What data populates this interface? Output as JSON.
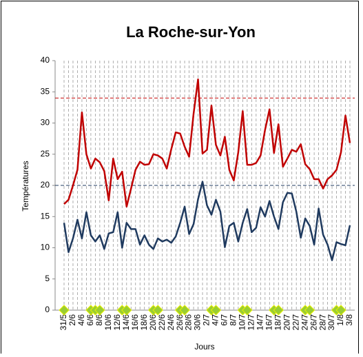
{
  "chart_data": {
    "type": "line",
    "title": "La Roche-sur-Yon",
    "x_label": "Jours",
    "y_label": "Températures",
    "categories": [
      "31/5",
      null,
      "2/6",
      null,
      "4/6",
      null,
      "6/6",
      null,
      "8/6",
      null,
      "10/6",
      null,
      "12/6",
      null,
      "14/6",
      null,
      "16/6",
      null,
      "18/6",
      null,
      "20/6",
      null,
      "22/6",
      null,
      "24/6",
      null,
      "26/6",
      null,
      "28/6",
      null,
      "30/6",
      null,
      "2/7",
      null,
      "4/7",
      null,
      "6/7",
      null,
      "8/7",
      null,
      "10/7",
      null,
      "12/7",
      null,
      "14/7",
      null,
      "16/7",
      null,
      "18/7",
      null,
      "20/7",
      null,
      "22/7",
      null,
      "24/7",
      null,
      "26/7",
      null,
      "28/7",
      null,
      "30/7",
      null,
      "1/8",
      null,
      "3/8"
    ],
    "series": [
      {
        "color": "#c00000",
        "style": "line",
        "values": [
          17,
          17.7,
          20,
          22.5,
          31.7,
          25,
          22.7,
          24.3,
          23.7,
          22.3,
          17.6,
          24.3,
          21,
          22.2,
          16.6,
          19.5,
          22.5,
          23.8,
          23.3,
          23.4,
          25,
          24.8,
          24.3,
          22.7,
          25.8,
          28.5,
          28.3,
          26.2,
          24.6,
          31.5,
          37,
          25.1,
          25.7,
          32.8,
          26.5,
          24.8,
          27.8,
          22.5,
          20.8,
          25.3,
          31.9,
          23.3,
          23.3,
          23.6,
          24.8,
          28.9,
          32.2,
          25.2,
          29.8,
          23,
          24.3,
          25.7,
          25.4,
          26.6,
          23.4,
          22.6,
          21,
          21,
          19.5,
          21,
          21.6,
          22.5,
          25.3,
          31.2,
          26.8
        ]
      },
      {
        "color": "#1f3a5f",
        "style": "line",
        "values": [
          14,
          9.3,
          11.5,
          14.5,
          11.5,
          15.7,
          12,
          11,
          12,
          9.8,
          12.3,
          12.5,
          15.7,
          10,
          14,
          13,
          13,
          10.5,
          12,
          10.5,
          9.8,
          11.5,
          11,
          11.3,
          10.8,
          11.8,
          14,
          16.6,
          12.2,
          13.8,
          17.8,
          20.6,
          16.8,
          15.3,
          17.7,
          15.8,
          10.1,
          13.5,
          14,
          11,
          14,
          16.2,
          12.5,
          13.2,
          16.5,
          15,
          17.5,
          15,
          13,
          17.3,
          18.8,
          18.7,
          15.8,
          11.6,
          14.7,
          13.5,
          10.5,
          16.3,
          12.1,
          10.5,
          8,
          10.9,
          10.6,
          10.4,
          13.6
        ]
      },
      {
        "color": "#9acd32",
        "style": "diamond",
        "values": [
          0,
          null,
          null,
          null,
          null,
          null,
          0,
          0,
          0,
          null,
          null,
          null,
          null,
          0,
          0,
          null,
          null,
          null,
          null,
          null,
          0,
          0,
          null,
          null,
          null,
          null,
          0,
          0,
          null,
          null,
          null,
          null,
          null,
          0,
          0,
          null,
          null,
          null,
          null,
          null,
          0,
          0,
          null,
          null,
          null,
          null,
          null,
          0,
          0,
          null,
          null,
          null,
          null,
          null,
          0,
          0,
          null,
          null,
          null,
          null,
          null,
          0,
          0,
          null,
          null
        ]
      }
    ],
    "reference_lines": [
      {
        "value": 34,
        "color": "#c00000"
      },
      {
        "value": 20,
        "color": "#1f3a5f"
      }
    ],
    "ylim": [
      0,
      40
    ],
    "yticks": [
      0,
      5,
      10,
      15,
      20,
      25,
      30,
      35,
      40
    ],
    "xgrid": true
  }
}
